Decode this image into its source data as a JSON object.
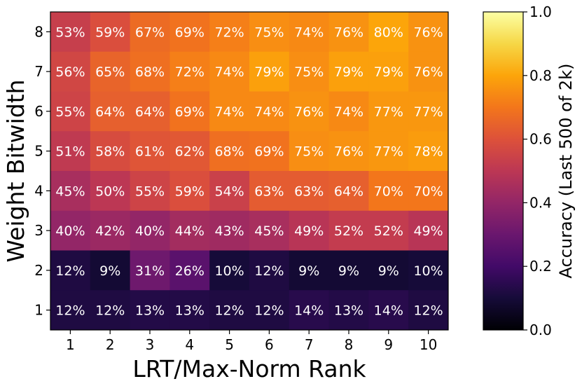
{
  "chart_data": {
    "type": "heatmap",
    "title": "",
    "xlabel": "LRT/Max-Norm Rank",
    "ylabel": "Weight Bitwidth",
    "x_categories": [
      "1",
      "2",
      "3",
      "4",
      "5",
      "6",
      "7",
      "8",
      "9",
      "10"
    ],
    "y_categories": [
      "8",
      "7",
      "6",
      "5",
      "4",
      "3",
      "2",
      "1"
    ],
    "values": [
      [
        0.53,
        0.59,
        0.67,
        0.69,
        0.72,
        0.75,
        0.74,
        0.76,
        0.8,
        0.76
      ],
      [
        0.56,
        0.65,
        0.68,
        0.72,
        0.74,
        0.79,
        0.75,
        0.79,
        0.79,
        0.76
      ],
      [
        0.55,
        0.64,
        0.64,
        0.69,
        0.74,
        0.74,
        0.76,
        0.74,
        0.77,
        0.77
      ],
      [
        0.51,
        0.58,
        0.61,
        0.62,
        0.68,
        0.69,
        0.75,
        0.76,
        0.77,
        0.78
      ],
      [
        0.45,
        0.5,
        0.55,
        0.59,
        0.54,
        0.63,
        0.63,
        0.64,
        0.7,
        0.7
      ],
      [
        0.4,
        0.42,
        0.4,
        0.44,
        0.43,
        0.45,
        0.49,
        0.52,
        0.52,
        0.49
      ],
      [
        0.12,
        0.09,
        0.31,
        0.26,
        0.1,
        0.12,
        0.09,
        0.09,
        0.09,
        0.1
      ],
      [
        0.12,
        0.12,
        0.13,
        0.13,
        0.12,
        0.12,
        0.14,
        0.13,
        0.14,
        0.12
      ]
    ],
    "cell_labels": [
      [
        "53%",
        "59%",
        "67%",
        "69%",
        "72%",
        "75%",
        "74%",
        "76%",
        "80%",
        "76%"
      ],
      [
        "56%",
        "65%",
        "68%",
        "72%",
        "74%",
        "79%",
        "75%",
        "79%",
        "79%",
        "76%"
      ],
      [
        "55%",
        "64%",
        "64%",
        "69%",
        "74%",
        "74%",
        "76%",
        "74%",
        "77%",
        "77%"
      ],
      [
        "51%",
        "58%",
        "61%",
        "62%",
        "68%",
        "69%",
        "75%",
        "76%",
        "77%",
        "78%"
      ],
      [
        "45%",
        "50%",
        "55%",
        "59%",
        "54%",
        "63%",
        "63%",
        "64%",
        "70%",
        "70%"
      ],
      [
        "40%",
        "42%",
        "40%",
        "44%",
        "43%",
        "45%",
        "49%",
        "52%",
        "52%",
        "49%"
      ],
      [
        "12%",
        "9%",
        "31%",
        "26%",
        "10%",
        "12%",
        "9%",
        "9%",
        "9%",
        "10%"
      ],
      [
        "12%",
        "12%",
        "13%",
        "13%",
        "12%",
        "12%",
        "14%",
        "13%",
        "14%",
        "12%"
      ]
    ],
    "colorbar": {
      "label": "Accuracy (Last 500 of 2k)",
      "range": [
        0.0,
        1.0
      ],
      "ticks": [
        "0.0",
        "0.2",
        "0.4",
        "0.6",
        "0.8",
        "1.0"
      ],
      "tick_values": [
        0.0,
        0.2,
        0.4,
        0.6,
        0.8,
        1.0
      ],
      "colormap": "inferno"
    },
    "grid": false
  }
}
